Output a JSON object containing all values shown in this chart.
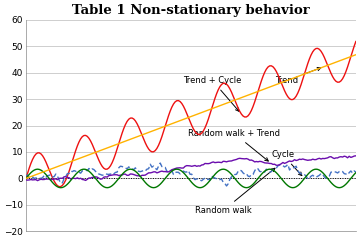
{
  "title": "Table 1 Non-stationary behavior",
  "title_fontsize": 9.5,
  "title_fontweight": "bold",
  "ylim": [
    -20,
    60
  ],
  "yticks": [
    -20,
    -10,
    0,
    10,
    20,
    30,
    40,
    50,
    60
  ],
  "n_points": 200,
  "trend_color": "#FFB300",
  "trend_cycle_color": "#EE1111",
  "random_walk_color": "#4472C4",
  "random_walk_trend_color": "#6A0DAD",
  "cycle_color": "#007700",
  "zero_line_color": "#000000",
  "background_color": "#FFFFFF",
  "grid_color": "#BBBBBB",
  "annotation_color": "#000000",
  "trend_slope": 0.235,
  "cycle_amp": 3.5,
  "cycle_period": 28,
  "trend_cycle_extra_amp": 8.0,
  "trend_cycle_period": 28,
  "seed_rw": 10,
  "seed_rwt": 7,
  "labels": {
    "trend": "Trend",
    "trend_cycle": "Trend + Cycle",
    "random_walk": "Random walk",
    "random_walk_trend": "Random walk + Trend",
    "cycle": "Cycle"
  }
}
